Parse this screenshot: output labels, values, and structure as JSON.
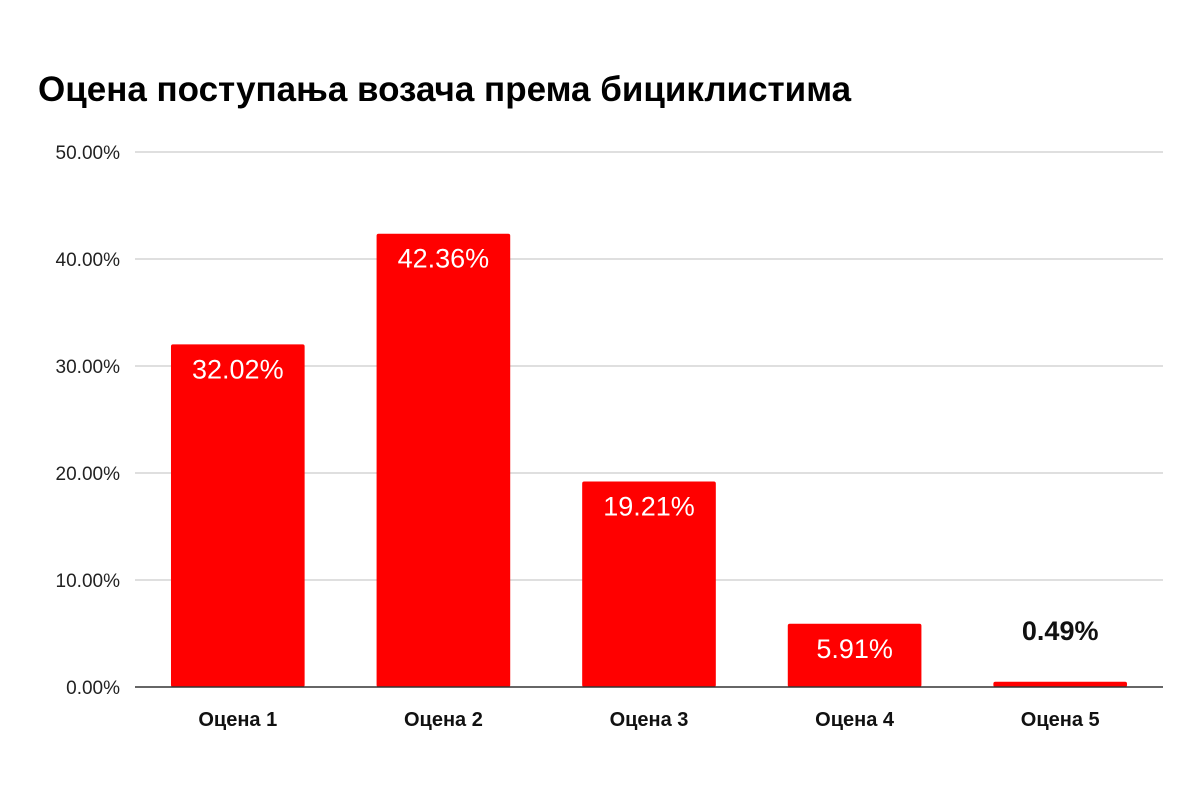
{
  "chart_data": {
    "type": "bar",
    "title": "Оцена поступања возача према бициклистима",
    "xlabel": "",
    "ylabel": "",
    "categories": [
      "Оцена 1",
      "Оцена 2",
      "Оцена 3",
      "Оцена 4",
      "Оцена 5"
    ],
    "values": [
      32.02,
      42.36,
      19.21,
      5.91,
      0.49
    ],
    "data_labels": [
      "32.02%",
      "42.36%",
      "19.21%",
      "5.91%",
      "0.49%"
    ],
    "ylim": [
      0,
      50
    ],
    "y_ticks": [
      0,
      10,
      20,
      30,
      40,
      50
    ],
    "y_tick_labels": [
      "0.00%",
      "10.00%",
      "20.00%",
      "30.00%",
      "40.00%",
      "50.00%"
    ],
    "grid": true,
    "legend": "none",
    "bar_color": "#ff0000",
    "inside_label_color": "#ffffff",
    "outside_label_color": "#111111",
    "gridline_color": "#cccccc",
    "axis_color": "#333333"
  }
}
